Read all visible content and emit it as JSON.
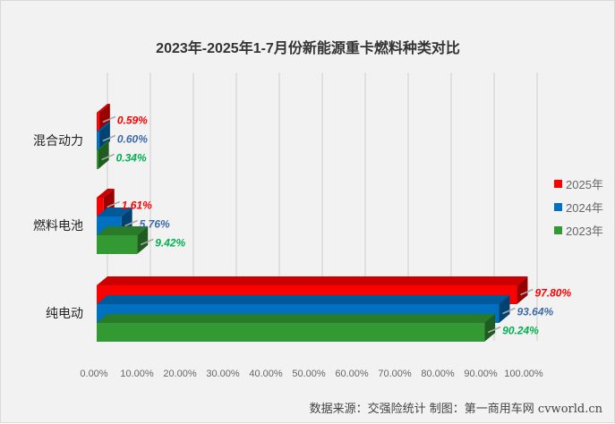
{
  "chart_data": {
    "type": "bar",
    "orientation": "horizontal",
    "three_d": true,
    "title": "2023年-2025年1-7月份新能源重卡燃料种类对比",
    "categories": [
      "混合动力",
      "燃料电池",
      "纯电动"
    ],
    "series": [
      {
        "name": "2025年",
        "color": "#ff0000",
        "label_color": "#ff0000",
        "values": [
          0.59,
          1.61,
          97.8
        ]
      },
      {
        "name": "2024年",
        "color": "#0070c0",
        "label_color": "#3d6aa8",
        "values": [
          0.6,
          5.76,
          93.64
        ]
      },
      {
        "name": "2023年",
        "color": "#339933",
        "label_color": "#00b050",
        "values": [
          0.34,
          9.42,
          90.24
        ]
      }
    ],
    "xlim": [
      0,
      100
    ],
    "xticks": [
      "0.00%",
      "10.00%",
      "20.00%",
      "30.00%",
      "40.00%",
      "50.00%",
      "60.00%",
      "70.00%",
      "80.00%",
      "90.00%",
      "100.00%"
    ],
    "grid": true,
    "legend_position": "right",
    "source": "数据来源：交强险统计 制图：第一商用车网 cvworld.cn"
  }
}
